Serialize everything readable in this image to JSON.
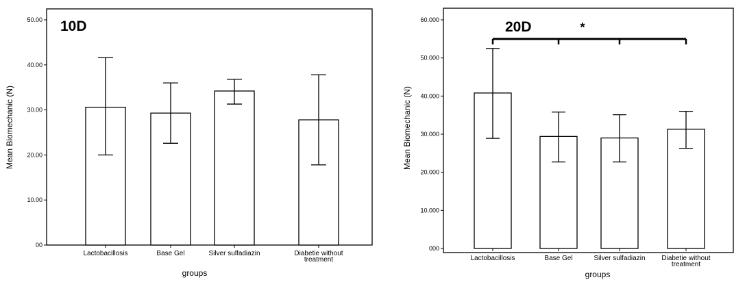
{
  "chart_data": [
    {
      "type": "bar",
      "title": "10D",
      "xlabel": "groups",
      "ylabel": "Mean Biomechanic (N)",
      "categories": [
        "Lactobacillosis",
        "Base Gel",
        "Silver sulfadiazin",
        [
          "Diabetie without",
          "treatment"
        ]
      ],
      "values": [
        30.6,
        29.3,
        34.2,
        27.8
      ],
      "error_low": [
        20.0,
        22.6,
        31.3,
        17.8
      ],
      "error_high": [
        41.6,
        36.0,
        36.8,
        37.8
      ],
      "ylim": [
        0,
        50
      ],
      "yticks": [
        0,
        10,
        20,
        30,
        40,
        50
      ],
      "ytick_labels": [
        "00",
        "10.00",
        "20.00",
        "30.00",
        "40.00",
        "50.00"
      ],
      "grid": false,
      "legend": null
    },
    {
      "type": "bar",
      "title": "20D",
      "xlabel": "groups",
      "ylabel": "Mean Biomechanic (N)",
      "categories": [
        "Lactobacillosis",
        "Base Gel",
        "Silver sulfadiazin",
        [
          "Diabetie without",
          "treatment"
        ]
      ],
      "values": [
        40.8,
        29.4,
        29.0,
        31.3
      ],
      "error_low": [
        28.9,
        22.7,
        22.7,
        26.3
      ],
      "error_high": [
        52.5,
        35.8,
        35.1,
        36.0
      ],
      "ylim": [
        0,
        60
      ],
      "yticks": [
        0,
        10,
        20,
        30,
        40,
        50,
        60
      ],
      "ytick_labels": [
        "000",
        "10.000",
        "20.000",
        "30.000",
        "40.000",
        "50.000",
        "60.000"
      ],
      "grid": false,
      "legend": null,
      "significance": {
        "label": "*",
        "from": 0,
        "to": [
          1,
          2,
          3
        ],
        "y": 55
      }
    }
  ]
}
